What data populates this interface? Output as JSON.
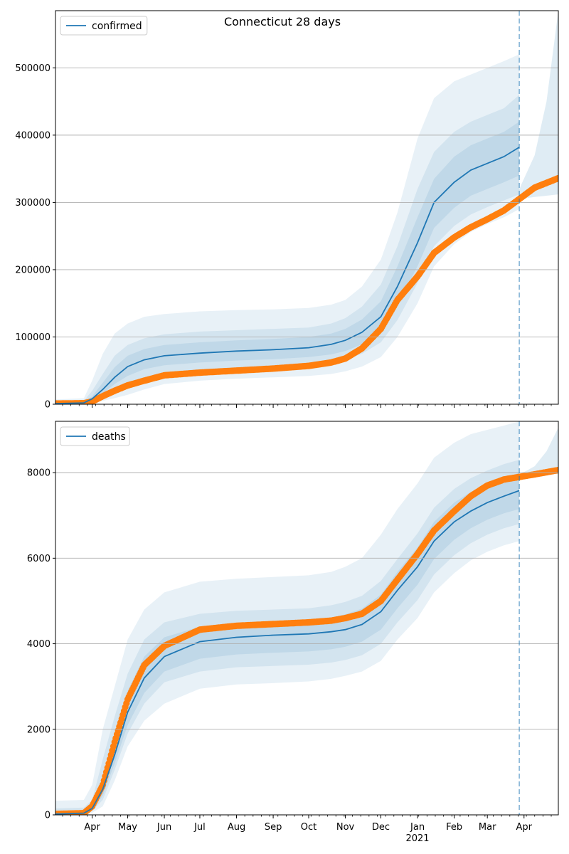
{
  "figure": {
    "title": "Connecticut 28 days"
  },
  "colors": {
    "model": "#1f77b4",
    "observed": "#ff7f0e",
    "band": "#1f77b4",
    "grid": "#b0b0b0",
    "forecast_line": "#1f77b4"
  },
  "chart_data": [
    {
      "type": "line",
      "title": "Connecticut 28 days",
      "xlabel": "",
      "ylabel": "",
      "x_range": [
        "2020-03-01",
        "2021-04-30"
      ],
      "ylim": [
        0,
        585000
      ],
      "yticks": [
        0,
        100000,
        200000,
        300000,
        400000,
        500000
      ],
      "ytick_labels": [
        "0",
        "100000",
        "200000",
        "300000",
        "400000",
        "500000"
      ],
      "grid": "horizontal",
      "legend": {
        "placement": "upper-left",
        "entries": [
          "confirmed"
        ]
      },
      "forecast_date": "2021-03-28",
      "series": [
        {
          "name": "confirmed",
          "kind": "model-median",
          "x": [
            "2020-03-01",
            "2020-03-25",
            "2020-04-01",
            "2020-04-10",
            "2020-04-20",
            "2020-05-01",
            "2020-05-15",
            "2020-06-01",
            "2020-07-01",
            "2020-08-01",
            "2020-09-01",
            "2020-10-01",
            "2020-10-20",
            "2020-11-01",
            "2020-11-15",
            "2020-12-01",
            "2020-12-15",
            "2021-01-01",
            "2021-01-15",
            "2021-02-01",
            "2021-02-15",
            "2021-03-01",
            "2021-03-15",
            "2021-03-28"
          ],
          "values": [
            1000,
            2000,
            8000,
            22000,
            40000,
            56000,
            66000,
            72000,
            76000,
            79000,
            81000,
            84000,
            89000,
            95000,
            107000,
            130000,
            175000,
            240000,
            300000,
            330000,
            348000,
            358000,
            368000,
            382000
          ]
        },
        {
          "kind": "observed",
          "x": [
            "2020-03-01",
            "2020-03-25",
            "2020-04-01",
            "2020-04-10",
            "2020-04-20",
            "2020-05-01",
            "2020-05-15",
            "2020-06-01",
            "2020-07-01",
            "2020-08-01",
            "2020-09-01",
            "2020-10-01",
            "2020-10-20",
            "2020-11-01",
            "2020-11-15",
            "2020-12-01",
            "2020-12-15",
            "2021-01-01",
            "2021-01-15",
            "2021-02-01",
            "2021-02-15",
            "2021-03-01",
            "2021-03-15",
            "2021-03-28",
            "2021-04-10",
            "2021-04-30"
          ],
          "values": [
            1000,
            1500,
            4000,
            12000,
            20000,
            28000,
            35000,
            43000,
            47000,
            50000,
            53000,
            57000,
            62000,
            68000,
            83000,
            112000,
            155000,
            190000,
            225000,
            248000,
            263000,
            275000,
            288000,
            305000,
            322000,
            336000
          ]
        },
        {
          "kind": "band-outer",
          "x": [
            "2020-03-01",
            "2020-03-25",
            "2020-04-01",
            "2020-04-10",
            "2020-04-20",
            "2020-05-01",
            "2020-05-15",
            "2020-06-01",
            "2020-07-01",
            "2020-08-01",
            "2020-09-01",
            "2020-10-01",
            "2020-10-20",
            "2020-11-01",
            "2020-11-15",
            "2020-12-01",
            "2020-12-15",
            "2021-01-01",
            "2021-01-15",
            "2021-02-01",
            "2021-02-15",
            "2021-03-01",
            "2021-03-15",
            "2021-03-28"
          ],
          "low": [
            0,
            500,
            2000,
            5000,
            9000,
            14000,
            22000,
            30000,
            35000,
            38000,
            40000,
            42000,
            45000,
            49000,
            56000,
            70000,
            100000,
            150000,
            205000,
            238000,
            256000,
            268000,
            278000,
            290000
          ],
          "high": [
            7000,
            9000,
            35000,
            75000,
            105000,
            120000,
            130000,
            134000,
            138000,
            140000,
            141000,
            143000,
            148000,
            155000,
            175000,
            215000,
            285000,
            395000,
            455000,
            480000,
            490000,
            500000,
            510000,
            520000
          ]
        },
        {
          "kind": "band-middle",
          "x": [
            "2020-03-01",
            "2020-03-25",
            "2020-04-01",
            "2020-04-10",
            "2020-04-20",
            "2020-05-01",
            "2020-05-15",
            "2020-06-01",
            "2020-07-01",
            "2020-08-01",
            "2020-09-01",
            "2020-10-01",
            "2020-10-20",
            "2020-11-01",
            "2020-11-15",
            "2020-12-01",
            "2020-12-15",
            "2021-01-01",
            "2021-01-15",
            "2021-02-01",
            "2021-02-15",
            "2021-03-01",
            "2021-03-15",
            "2021-03-28"
          ],
          "low": [
            200,
            1000,
            4000,
            10000,
            18000,
            28000,
            38000,
            45000,
            49000,
            52000,
            54000,
            57000,
            61000,
            66000,
            75000,
            92000,
            125000,
            180000,
            235000,
            265000,
            282000,
            293000,
            303000,
            312000
          ],
          "high": [
            4000,
            5000,
            20000,
            45000,
            72000,
            88000,
            98000,
            104000,
            108000,
            110000,
            112000,
            114000,
            120000,
            128000,
            145000,
            178000,
            235000,
            320000,
            375000,
            405000,
            420000,
            430000,
            440000,
            460000
          ]
        },
        {
          "kind": "band-inner",
          "x": [
            "2020-03-01",
            "2020-03-25",
            "2020-04-01",
            "2020-04-10",
            "2020-04-20",
            "2020-05-01",
            "2020-05-15",
            "2020-06-01",
            "2020-07-01",
            "2020-08-01",
            "2020-09-01",
            "2020-10-01",
            "2020-10-20",
            "2020-11-01",
            "2020-11-15",
            "2020-12-01",
            "2020-12-15",
            "2021-01-01",
            "2021-01-15",
            "2021-02-01",
            "2021-02-15",
            "2021-03-01",
            "2021-03-15",
            "2021-03-28"
          ],
          "low": [
            500,
            1500,
            6000,
            16000,
            30000,
            42000,
            52000,
            58000,
            62000,
            65000,
            67000,
            70000,
            74000,
            79000,
            89000,
            108000,
            148000,
            205000,
            262000,
            292000,
            310000,
            320000,
            330000,
            340000
          ],
          "high": [
            2000,
            3000,
            12000,
            32000,
            55000,
            72000,
            82000,
            88000,
            92000,
            95000,
            97000,
            100000,
            105000,
            112000,
            126000,
            153000,
            205000,
            278000,
            335000,
            368000,
            385000,
            395000,
            405000,
            420000
          ]
        },
        {
          "kind": "band-future",
          "x": [
            "2021-03-28",
            "2021-04-10",
            "2021-04-20",
            "2021-04-30"
          ],
          "low": [
            305000,
            308000,
            310000,
            312000
          ],
          "high": [
            320000,
            370000,
            450000,
            585000
          ]
        }
      ]
    },
    {
      "type": "line",
      "title": "",
      "xlabel": "",
      "ylabel": "",
      "x_range": [
        "2020-03-01",
        "2021-04-30"
      ],
      "ylim": [
        0,
        9200
      ],
      "yticks": [
        0,
        2000,
        4000,
        6000,
        8000
      ],
      "ytick_labels": [
        "0",
        "2000",
        "4000",
        "6000",
        "8000"
      ],
      "xtick_labels": [
        "Apr",
        "May",
        "Jun",
        "Jul",
        "Aug",
        "Sep",
        "Oct",
        "Nov",
        "Dec",
        "Jan",
        "Feb",
        "Mar",
        "Apr"
      ],
      "xtick_dates": [
        "2020-04-01",
        "2020-05-01",
        "2020-06-01",
        "2020-07-01",
        "2020-08-01",
        "2020-09-01",
        "2020-10-01",
        "2020-11-01",
        "2020-12-01",
        "2021-01-01",
        "2021-02-01",
        "2021-03-01",
        "2021-04-01"
      ],
      "year_label": "2021",
      "grid": "horizontal",
      "legend": {
        "placement": "upper-left",
        "entries": [
          "deaths"
        ]
      },
      "forecast_date": "2021-03-28",
      "series": [
        {
          "name": "deaths",
          "kind": "model-median",
          "x": [
            "2020-03-01",
            "2020-03-25",
            "2020-04-01",
            "2020-04-10",
            "2020-04-20",
            "2020-05-01",
            "2020-05-15",
            "2020-06-01",
            "2020-07-01",
            "2020-08-01",
            "2020-09-01",
            "2020-10-01",
            "2020-10-20",
            "2020-11-01",
            "2020-11-15",
            "2020-12-01",
            "2020-12-15",
            "2021-01-01",
            "2021-01-15",
            "2021-02-01",
            "2021-02-15",
            "2021-03-01",
            "2021-03-15",
            "2021-03-28"
          ],
          "values": [
            20,
            40,
            150,
            600,
            1400,
            2400,
            3200,
            3700,
            4050,
            4150,
            4200,
            4230,
            4280,
            4330,
            4450,
            4750,
            5250,
            5800,
            6400,
            6850,
            7100,
            7300,
            7450,
            7580
          ]
        },
        {
          "kind": "observed",
          "x": [
            "2020-03-01",
            "2020-03-25",
            "2020-04-01",
            "2020-04-10",
            "2020-04-20",
            "2020-05-01",
            "2020-05-15",
            "2020-06-01",
            "2020-07-01",
            "2020-08-01",
            "2020-09-01",
            "2020-10-01",
            "2020-10-20",
            "2020-11-01",
            "2020-11-15",
            "2020-12-01",
            "2020-12-15",
            "2021-01-01",
            "2021-01-15",
            "2021-02-01",
            "2021-02-15",
            "2021-03-01",
            "2021-03-15",
            "2021-03-28",
            "2021-04-10",
            "2021-04-30"
          ],
          "values": [
            20,
            40,
            200,
            700,
            1700,
            2700,
            3500,
            3950,
            4330,
            4420,
            4460,
            4500,
            4540,
            4600,
            4700,
            5000,
            5500,
            6100,
            6650,
            7100,
            7450,
            7700,
            7840,
            7900,
            7960,
            8060
          ]
        },
        {
          "kind": "band-outer",
          "x": [
            "2020-03-01",
            "2020-03-25",
            "2020-04-01",
            "2020-04-10",
            "2020-04-20",
            "2020-05-01",
            "2020-05-15",
            "2020-06-01",
            "2020-07-01",
            "2020-08-01",
            "2020-09-01",
            "2020-10-01",
            "2020-10-20",
            "2020-11-01",
            "2020-11-15",
            "2020-12-01",
            "2020-12-15",
            "2021-01-01",
            "2021-01-15",
            "2021-02-01",
            "2021-02-15",
            "2021-03-01",
            "2021-03-15",
            "2021-03-28"
          ],
          "low": [
            0,
            0,
            50,
            200,
            800,
            1600,
            2200,
            2600,
            2950,
            3050,
            3080,
            3120,
            3180,
            3250,
            3350,
            3600,
            4100,
            4600,
            5200,
            5650,
            5950,
            6150,
            6300,
            6400
          ],
          "high": [
            330,
            350,
            700,
            2000,
            3000,
            4100,
            4800,
            5200,
            5450,
            5520,
            5560,
            5600,
            5680,
            5800,
            6000,
            6550,
            7150,
            7750,
            8350,
            8700,
            8900,
            9000,
            9100,
            9200
          ]
        },
        {
          "kind": "band-middle",
          "x": [
            "2020-03-01",
            "2020-03-25",
            "2020-04-01",
            "2020-04-10",
            "2020-04-20",
            "2020-05-01",
            "2020-05-15",
            "2020-06-01",
            "2020-07-01",
            "2020-08-01",
            "2020-09-01",
            "2020-10-01",
            "2020-10-20",
            "2020-11-01",
            "2020-11-15",
            "2020-12-01",
            "2020-12-15",
            "2021-01-01",
            "2021-01-15",
            "2021-02-01",
            "2021-02-15",
            "2021-03-01",
            "2021-03-15",
            "2021-03-28"
          ],
          "low": [
            5,
            10,
            90,
            350,
            1050,
            1900,
            2600,
            3100,
            3350,
            3450,
            3480,
            3510,
            3560,
            3620,
            3730,
            4000,
            4500,
            5020,
            5620,
            6070,
            6350,
            6550,
            6700,
            6800
          ],
          "high": [
            150,
            170,
            350,
            1300,
            2300,
            3300,
            4100,
            4500,
            4700,
            4770,
            4800,
            4830,
            4900,
            4980,
            5120,
            5470,
            5980,
            6580,
            7180,
            7620,
            7870,
            8050,
            8200,
            8300
          ]
        },
        {
          "kind": "band-inner",
          "x": [
            "2020-03-01",
            "2020-03-25",
            "2020-04-01",
            "2020-04-10",
            "2020-04-20",
            "2020-05-01",
            "2020-05-15",
            "2020-06-01",
            "2020-07-01",
            "2020-08-01",
            "2020-09-01",
            "2020-10-01",
            "2020-10-20",
            "2020-11-01",
            "2020-11-15",
            "2020-12-01",
            "2020-12-15",
            "2021-01-01",
            "2021-01-15",
            "2021-02-01",
            "2021-02-15",
            "2021-03-01",
            "2021-03-15",
            "2021-03-28"
          ],
          "low": [
            10,
            20,
            110,
            450,
            1200,
            2100,
            2850,
            3350,
            3650,
            3750,
            3790,
            3820,
            3870,
            3930,
            4050,
            4330,
            4830,
            5380,
            5980,
            6430,
            6700,
            6900,
            7050,
            7150
          ],
          "high": [
            60,
            80,
            220,
            900,
            1800,
            2900,
            3700,
            4150,
            4400,
            4480,
            4520,
            4550,
            4610,
            4690,
            4820,
            5150,
            5680,
            6250,
            6850,
            7300,
            7550,
            7720,
            7870,
            8000
          ]
        },
        {
          "kind": "band-future",
          "x": [
            "2021-03-28",
            "2021-04-10",
            "2021-04-20",
            "2021-04-30"
          ],
          "low": [
            7850,
            7880,
            7930,
            7980
          ],
          "high": [
            7950,
            8150,
            8500,
            9050
          ]
        }
      ]
    }
  ]
}
